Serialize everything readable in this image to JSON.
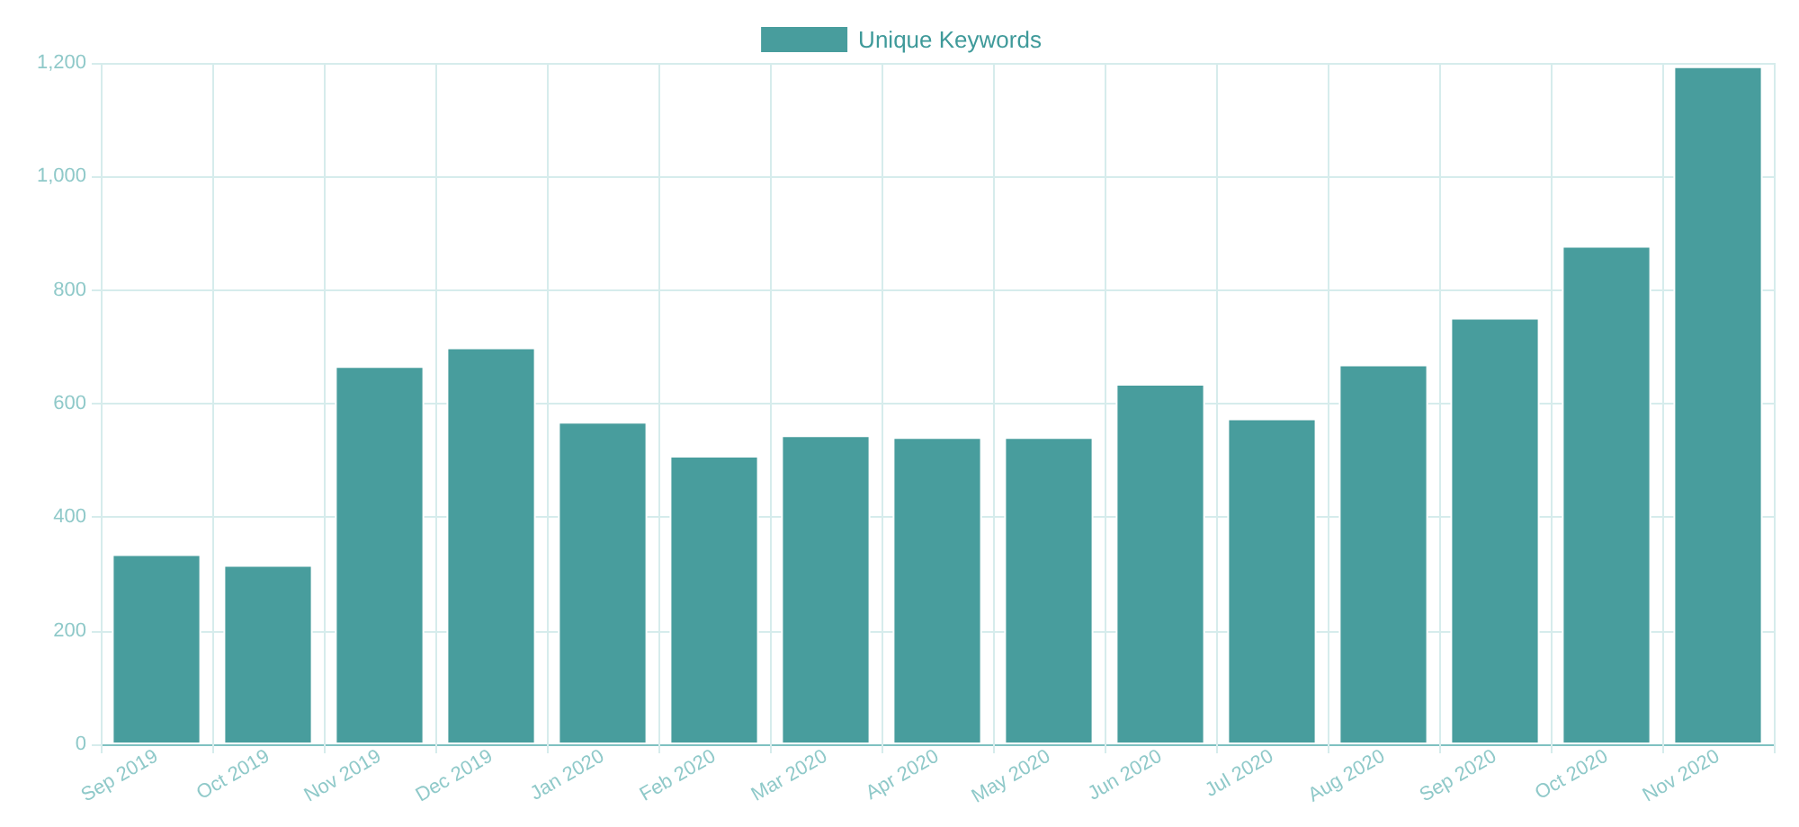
{
  "chart_data": {
    "type": "bar",
    "categories": [
      "Sep 2019",
      "Oct 2019",
      "Nov 2019",
      "Dec 2019",
      "Jan 2020",
      "Feb 2020",
      "Mar 2020",
      "Apr 2020",
      "May 2020",
      "Jun 2020",
      "Jul 2020",
      "Aug 2020",
      "Sep 2020",
      "Oct 2020",
      "Nov 2020"
    ],
    "series": [
      {
        "name": "Unique Keywords",
        "color": "#489d9d",
        "values": [
          335,
          316,
          666,
          699,
          568,
          508,
          544,
          541,
          541,
          635,
          574,
          669,
          751,
          878,
          1194
        ]
      }
    ],
    "ylim": [
      0,
      1200
    ],
    "yticks": [
      0,
      200,
      400,
      600,
      800,
      {
        "value": 1000,
        "label": "1,000"
      },
      {
        "value": 1200,
        "label": "1,200"
      }
    ],
    "grid": true,
    "legend": "top"
  }
}
